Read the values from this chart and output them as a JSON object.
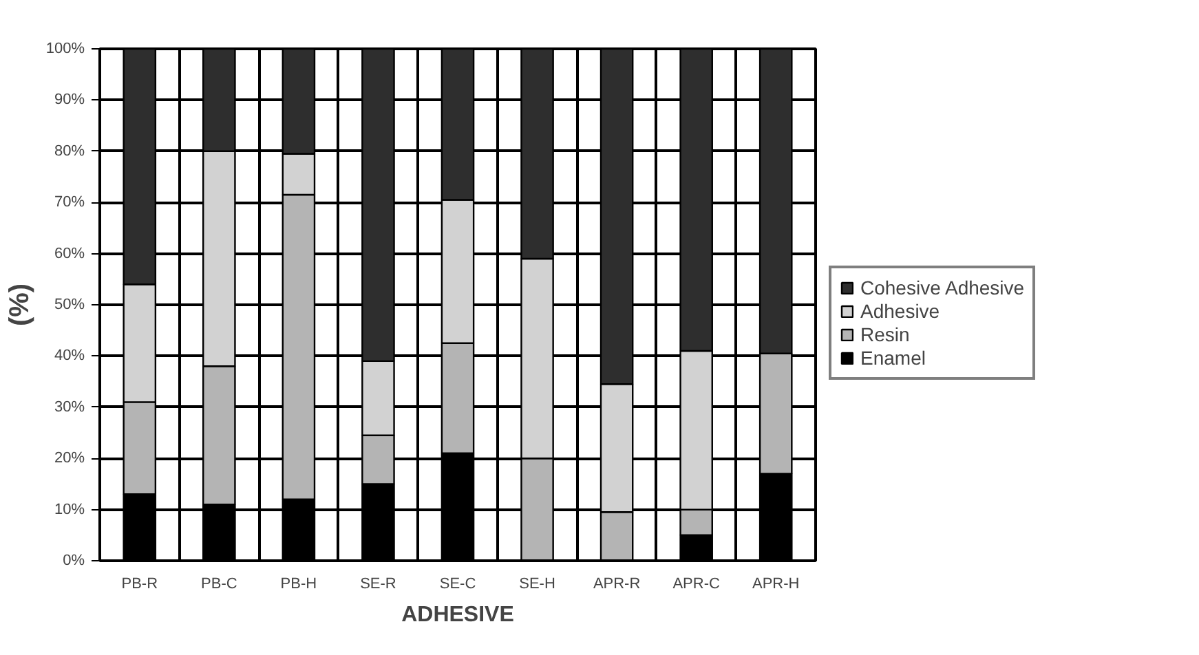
{
  "chart_data": {
    "type": "bar",
    "stacked": true,
    "xlabel": "ADHESIVE",
    "ylabel": "(%)",
    "categories": [
      "PB-R",
      "PB-C",
      "PB-H",
      "SE-R",
      "SE-C",
      "SE-H",
      "APR-R",
      "APR-C",
      "APR-H"
    ],
    "series": [
      {
        "name": "Enamel",
        "color": "#000000",
        "values": [
          13,
          11,
          12,
          15,
          21,
          null,
          null,
          5,
          17
        ]
      },
      {
        "name": "Resin",
        "color": "#b4b4b4",
        "values": [
          18,
          27,
          59.5,
          9.5,
          21.5,
          20,
          9.5,
          5,
          23.5
        ]
      },
      {
        "name": "Adhesive",
        "color": "#d2d2d2",
        "values": [
          23,
          42,
          8,
          14.5,
          28,
          39,
          25,
          31,
          null
        ]
      },
      {
        "name": "Cohesive Adhesive",
        "color": "#2e2e2e",
        "values": [
          46,
          20,
          20.5,
          61,
          29.5,
          41,
          65.5,
          59,
          59.5
        ]
      }
    ],
    "ylim": [
      0,
      100
    ],
    "yticks": [
      {
        "value": 0,
        "label": "0%"
      },
      {
        "value": 10,
        "label": "10%"
      },
      {
        "value": 20,
        "label": "20%"
      },
      {
        "value": 30,
        "label": "30%"
      },
      {
        "value": 40,
        "label": "40%"
      },
      {
        "value": 50,
        "label": "50%"
      },
      {
        "value": 60,
        "label": "60%"
      },
      {
        "value": 70,
        "label": "70%"
      },
      {
        "value": 80,
        "label": "80%"
      },
      {
        "value": 90,
        "label": "90%"
      },
      {
        "value": 100,
        "label": "100%"
      }
    ],
    "grid": true,
    "legend": "right"
  }
}
